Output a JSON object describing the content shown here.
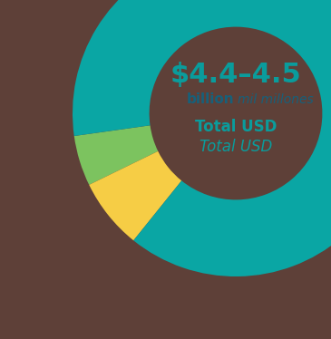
{
  "chart_data": {
    "type": "pie",
    "values": [
      5,
      7,
      88
    ],
    "colors": [
      "#7cc35f",
      "#f6cd45",
      "#0aa6a4"
    ],
    "annotations": [
      "$4.4–4.5",
      "billion",
      "mil millones",
      "Total USD",
      "Total USD"
    ]
  }
}
